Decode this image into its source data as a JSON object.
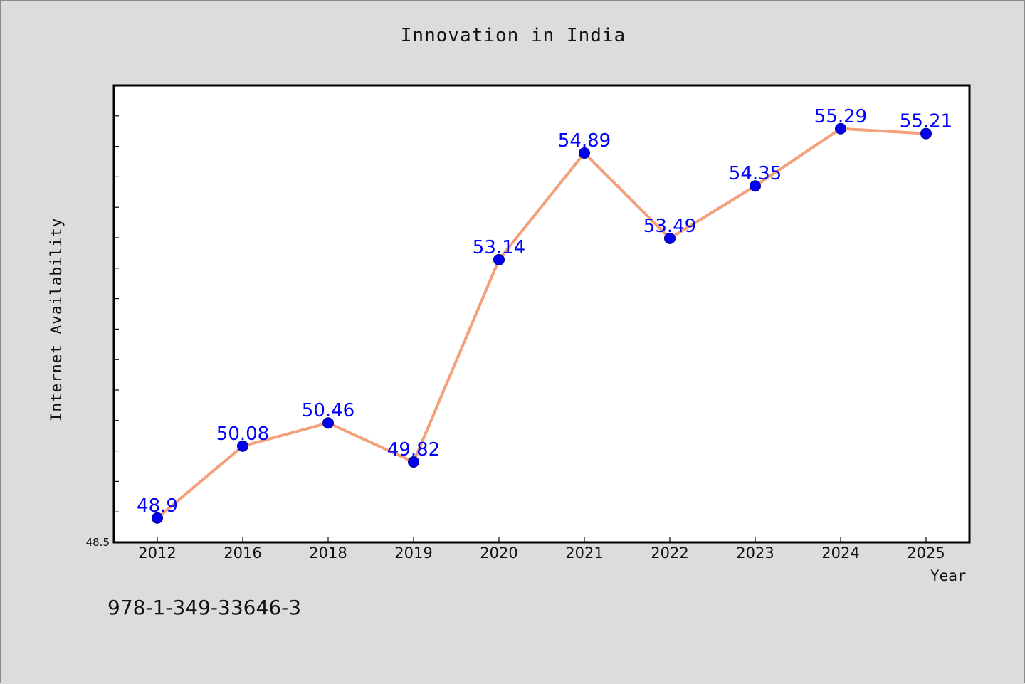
{
  "chart_data": {
    "type": "line",
    "title": "Innovation in India",
    "xlabel": "Year",
    "ylabel": "Internet Availability",
    "categories": [
      "2012",
      "2016",
      "2018",
      "2019",
      "2020",
      "2021",
      "2022",
      "2023",
      "2024",
      "2025"
    ],
    "series": [
      {
        "values": [
          48.9,
          50.08,
          50.46,
          49.82,
          53.14,
          54.89,
          53.49,
          54.35,
          55.29,
          55.21
        ],
        "labels": [
          "48.9",
          "50.08",
          "50.46",
          "49.82",
          "53.14",
          "54.89",
          "53.49",
          "54.35",
          "55.29",
          "55.21"
        ],
        "line_color": "#f4a07a",
        "marker_color": "#0000ee"
      }
    ],
    "ylim": [
      48.5,
      56.0
    ],
    "ytick_labels": [
      "48.5"
    ],
    "grid": false,
    "legend": "none",
    "label_color": "#0000ff"
  },
  "footer_text": "978-1-349-33646-3"
}
